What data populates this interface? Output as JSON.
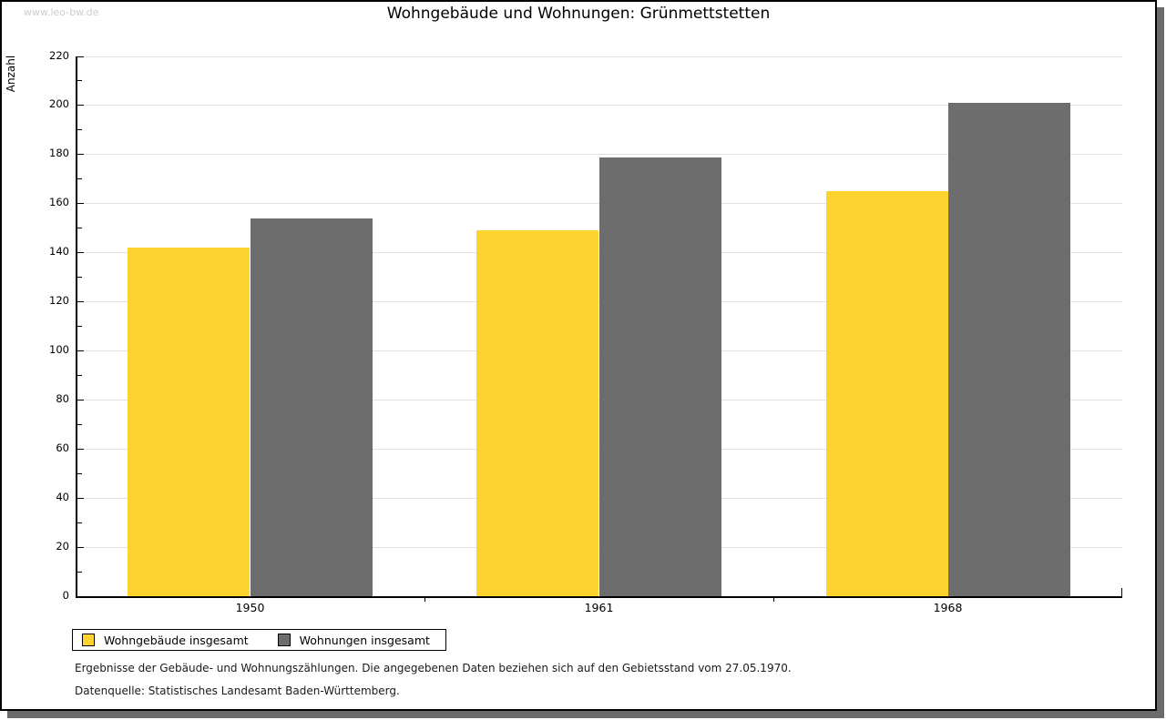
{
  "watermark": "www.leo-bw.de",
  "title": "Wohngebäude und Wohnungen: Grünmettstetten",
  "notes": [
    "Ergebnisse der Gebäude- und Wohnungszählungen. Die angegebenen Daten beziehen sich auf den Gebietsstand vom 27.05.1970.",
    "Datenquelle: Statistisches Landesamt Baden-Württemberg."
  ],
  "chart_data": {
    "type": "bar",
    "title": "Wohngebäude und Wohnungen: Grünmettstetten",
    "xlabel": "",
    "ylabel": "Anzahl",
    "categories": [
      "1950",
      "1961",
      "1968"
    ],
    "series": [
      {
        "name": "Wohngebäude insgesamt",
        "color": "#FCD32F",
        "values": [
          142,
          149,
          165
        ]
      },
      {
        "name": "Wohnungen insgesamt",
        "color": "#6D6D6D",
        "values": [
          154,
          179,
          201
        ]
      }
    ],
    "ylim": [
      0,
      220
    ],
    "ytick_step": 20,
    "yminor_step": 10,
    "grid": true,
    "legend_position": "bottom-left"
  },
  "colors": {
    "grid": "#e2e2e2",
    "axis": "#000000",
    "watermark": "#cccccc",
    "shadow": "#6b6b6b",
    "background": "#ffffff"
  }
}
